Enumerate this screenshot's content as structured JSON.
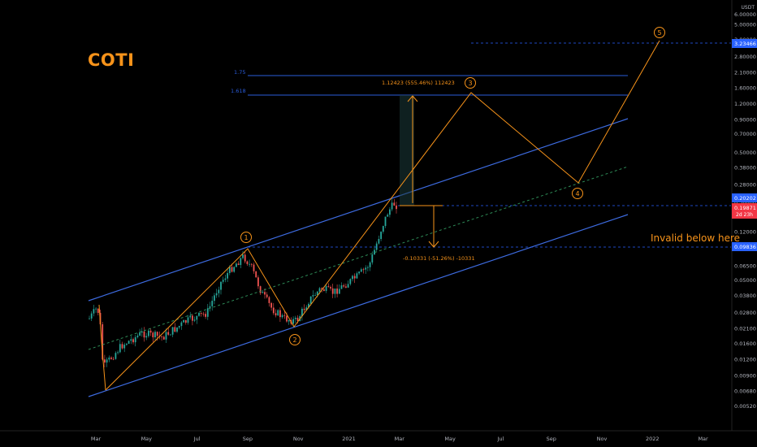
{
  "title": "COTI",
  "invalid_label": "Invalid below here",
  "unit": "USDT",
  "colors": {
    "background": "#000000",
    "channel": "#3d6be0",
    "midline": "#2e8b57",
    "wave": "#f7931a",
    "up_candle": "#26a69a",
    "down_candle": "#ef5350",
    "fib": "#2a5bd7"
  },
  "chart_data": {
    "type": "candlestick",
    "title": "COTI",
    "xlabel": "",
    "ylabel": "",
    "y_scale": "log",
    "ylim": [
      0.0042,
      7.2
    ],
    "x_ticks": [
      "Mar",
      "May",
      "Jul",
      "Sep",
      "Nov",
      "2021",
      "Mar",
      "May",
      "Jul",
      "Sep",
      "Nov",
      "2022",
      "Mar"
    ],
    "y_ticks": [
      "6.00000",
      "5.00000",
      "3.80000",
      "2.80000",
      "2.10000",
      "1.60000",
      "1.20000",
      "0.90000",
      "0.70000",
      "0.50000",
      "0.38000",
      "0.28000",
      "0.20000",
      "0.16000",
      "0.12000",
      "0.09000",
      "0.06500",
      "0.05000",
      "0.03800",
      "0.02800",
      "0.02100",
      "0.01600",
      "0.01200",
      "0.00900",
      "0.00680",
      "0.00520"
    ],
    "price_tags": [
      {
        "label": "3.23466",
        "color": "#2962ff"
      },
      {
        "label": "0.20202",
        "color": "#2962ff"
      },
      {
        "label": "0.19871",
        "sub": "2d 23h",
        "color": "#f23645"
      },
      {
        "label": "0.09836",
        "color": "#2962ff"
      }
    ],
    "fib_levels": [
      {
        "label": "1.75",
        "value": 2.26
      },
      {
        "label": "1.618",
        "value": 1.32
      }
    ],
    "wave_labels": [
      "1",
      "2",
      "3",
      "4",
      "5"
    ],
    "measure_up": "1.12423 (555.46%) 112423",
    "measure_down": "-0.10331 (-51.26%) -10331",
    "annotation": "Invalid below here"
  }
}
